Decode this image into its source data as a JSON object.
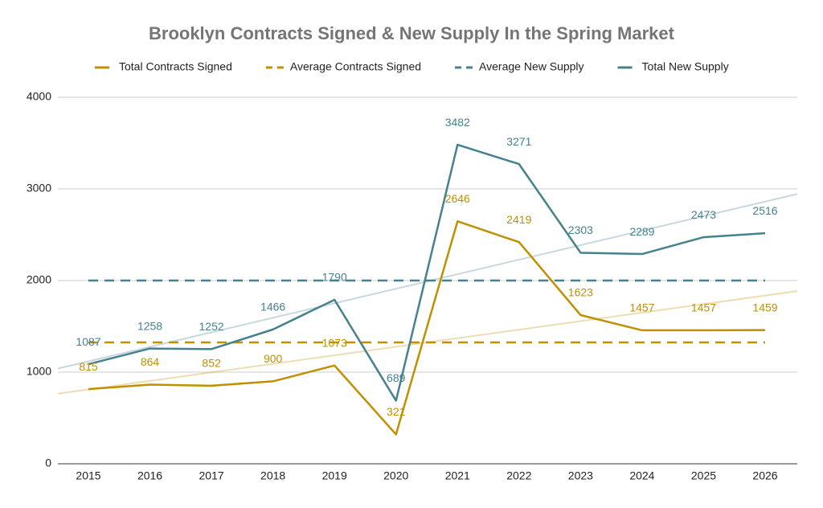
{
  "chart_data": {
    "type": "line",
    "title": "Brooklyn Contracts Signed & New Supply In the Spring Market",
    "categories": [
      "2015",
      "2016",
      "2017",
      "2018",
      "2019",
      "2020",
      "2021",
      "2022",
      "2023",
      "2024",
      "2025",
      "2026"
    ],
    "series": [
      {
        "name": "Total Contracts Signed",
        "color": "#bf9000",
        "style": "solid",
        "data_labels": true,
        "trendline": true,
        "values": [
          815,
          864,
          852,
          900,
          1073,
          321,
          2646,
          2419,
          1623,
          1457,
          1457,
          1459
        ]
      },
      {
        "name": "Average Contracts Signed",
        "color": "#bf9000",
        "style": "dashed",
        "data_labels": false,
        "trendline": false,
        "values": [
          1325,
          1325,
          1325,
          1325,
          1325,
          1325,
          1325,
          1325,
          1325,
          1325,
          1325,
          1325
        ]
      },
      {
        "name": "Average New Supply",
        "color": "#45818e",
        "style": "dashed",
        "data_labels": false,
        "trendline": false,
        "values": [
          2000,
          2000,
          2000,
          2000,
          2000,
          2000,
          2000,
          2000,
          2000,
          2000,
          2000,
          2000
        ]
      },
      {
        "name": "Total New Supply",
        "color": "#45818e",
        "style": "solid",
        "data_labels": true,
        "trendline": true,
        "values": [
          1087,
          1258,
          1252,
          1466,
          1790,
          689,
          3482,
          3271,
          2303,
          2289,
          2473,
          2516
        ]
      }
    ],
    "ylim": [
      0,
      4000
    ],
    "yticks": [
      0,
      1000,
      2000,
      3000,
      4000
    ],
    "grid": true,
    "legend": "top"
  }
}
